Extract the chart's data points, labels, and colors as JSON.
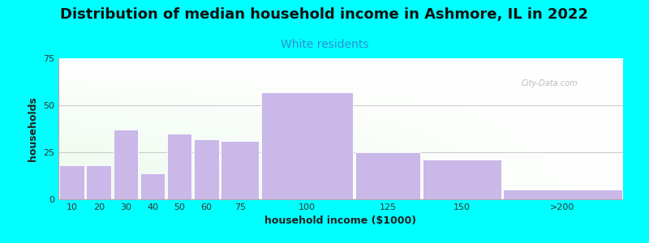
{
  "title": "Distribution of median household income in Ashmore, IL in 2022",
  "subtitle": "White residents",
  "xlabel": "household income ($1000)",
  "ylabel": "households",
  "background_color": "#00FFFF",
  "bar_color": "#c9b8e8",
  "bar_edgecolor": "#ffffff",
  "categories": [
    "10",
    "20",
    "30",
    "40",
    "50",
    "60",
    "75",
    "100",
    "125",
    "150",
    ">200"
  ],
  "bar_lefts": [
    0,
    10,
    20,
    30,
    40,
    50,
    60,
    75,
    110,
    135,
    165
  ],
  "bar_rights": [
    10,
    20,
    30,
    40,
    50,
    60,
    75,
    110,
    135,
    165,
    210
  ],
  "values": [
    18,
    18,
    37,
    14,
    35,
    32,
    31,
    57,
    25,
    21,
    5
  ],
  "xtick_positions": [
    5,
    15,
    25,
    35,
    45,
    55,
    67.5,
    92.5,
    122.5,
    150,
    187.5
  ],
  "xtick_labels": [
    "10",
    "20",
    "30",
    "40",
    "50",
    "60",
    "75",
    "100",
    "125",
    "150",
    ">200"
  ],
  "xlim": [
    0,
    210
  ],
  "ylim": [
    0,
    75
  ],
  "yticks": [
    0,
    25,
    50,
    75
  ],
  "title_fontsize": 13,
  "subtitle_fontsize": 10,
  "subtitle_color": "#3090d0",
  "axis_label_fontsize": 9,
  "tick_fontsize": 8,
  "watermark": "City-Data.com"
}
